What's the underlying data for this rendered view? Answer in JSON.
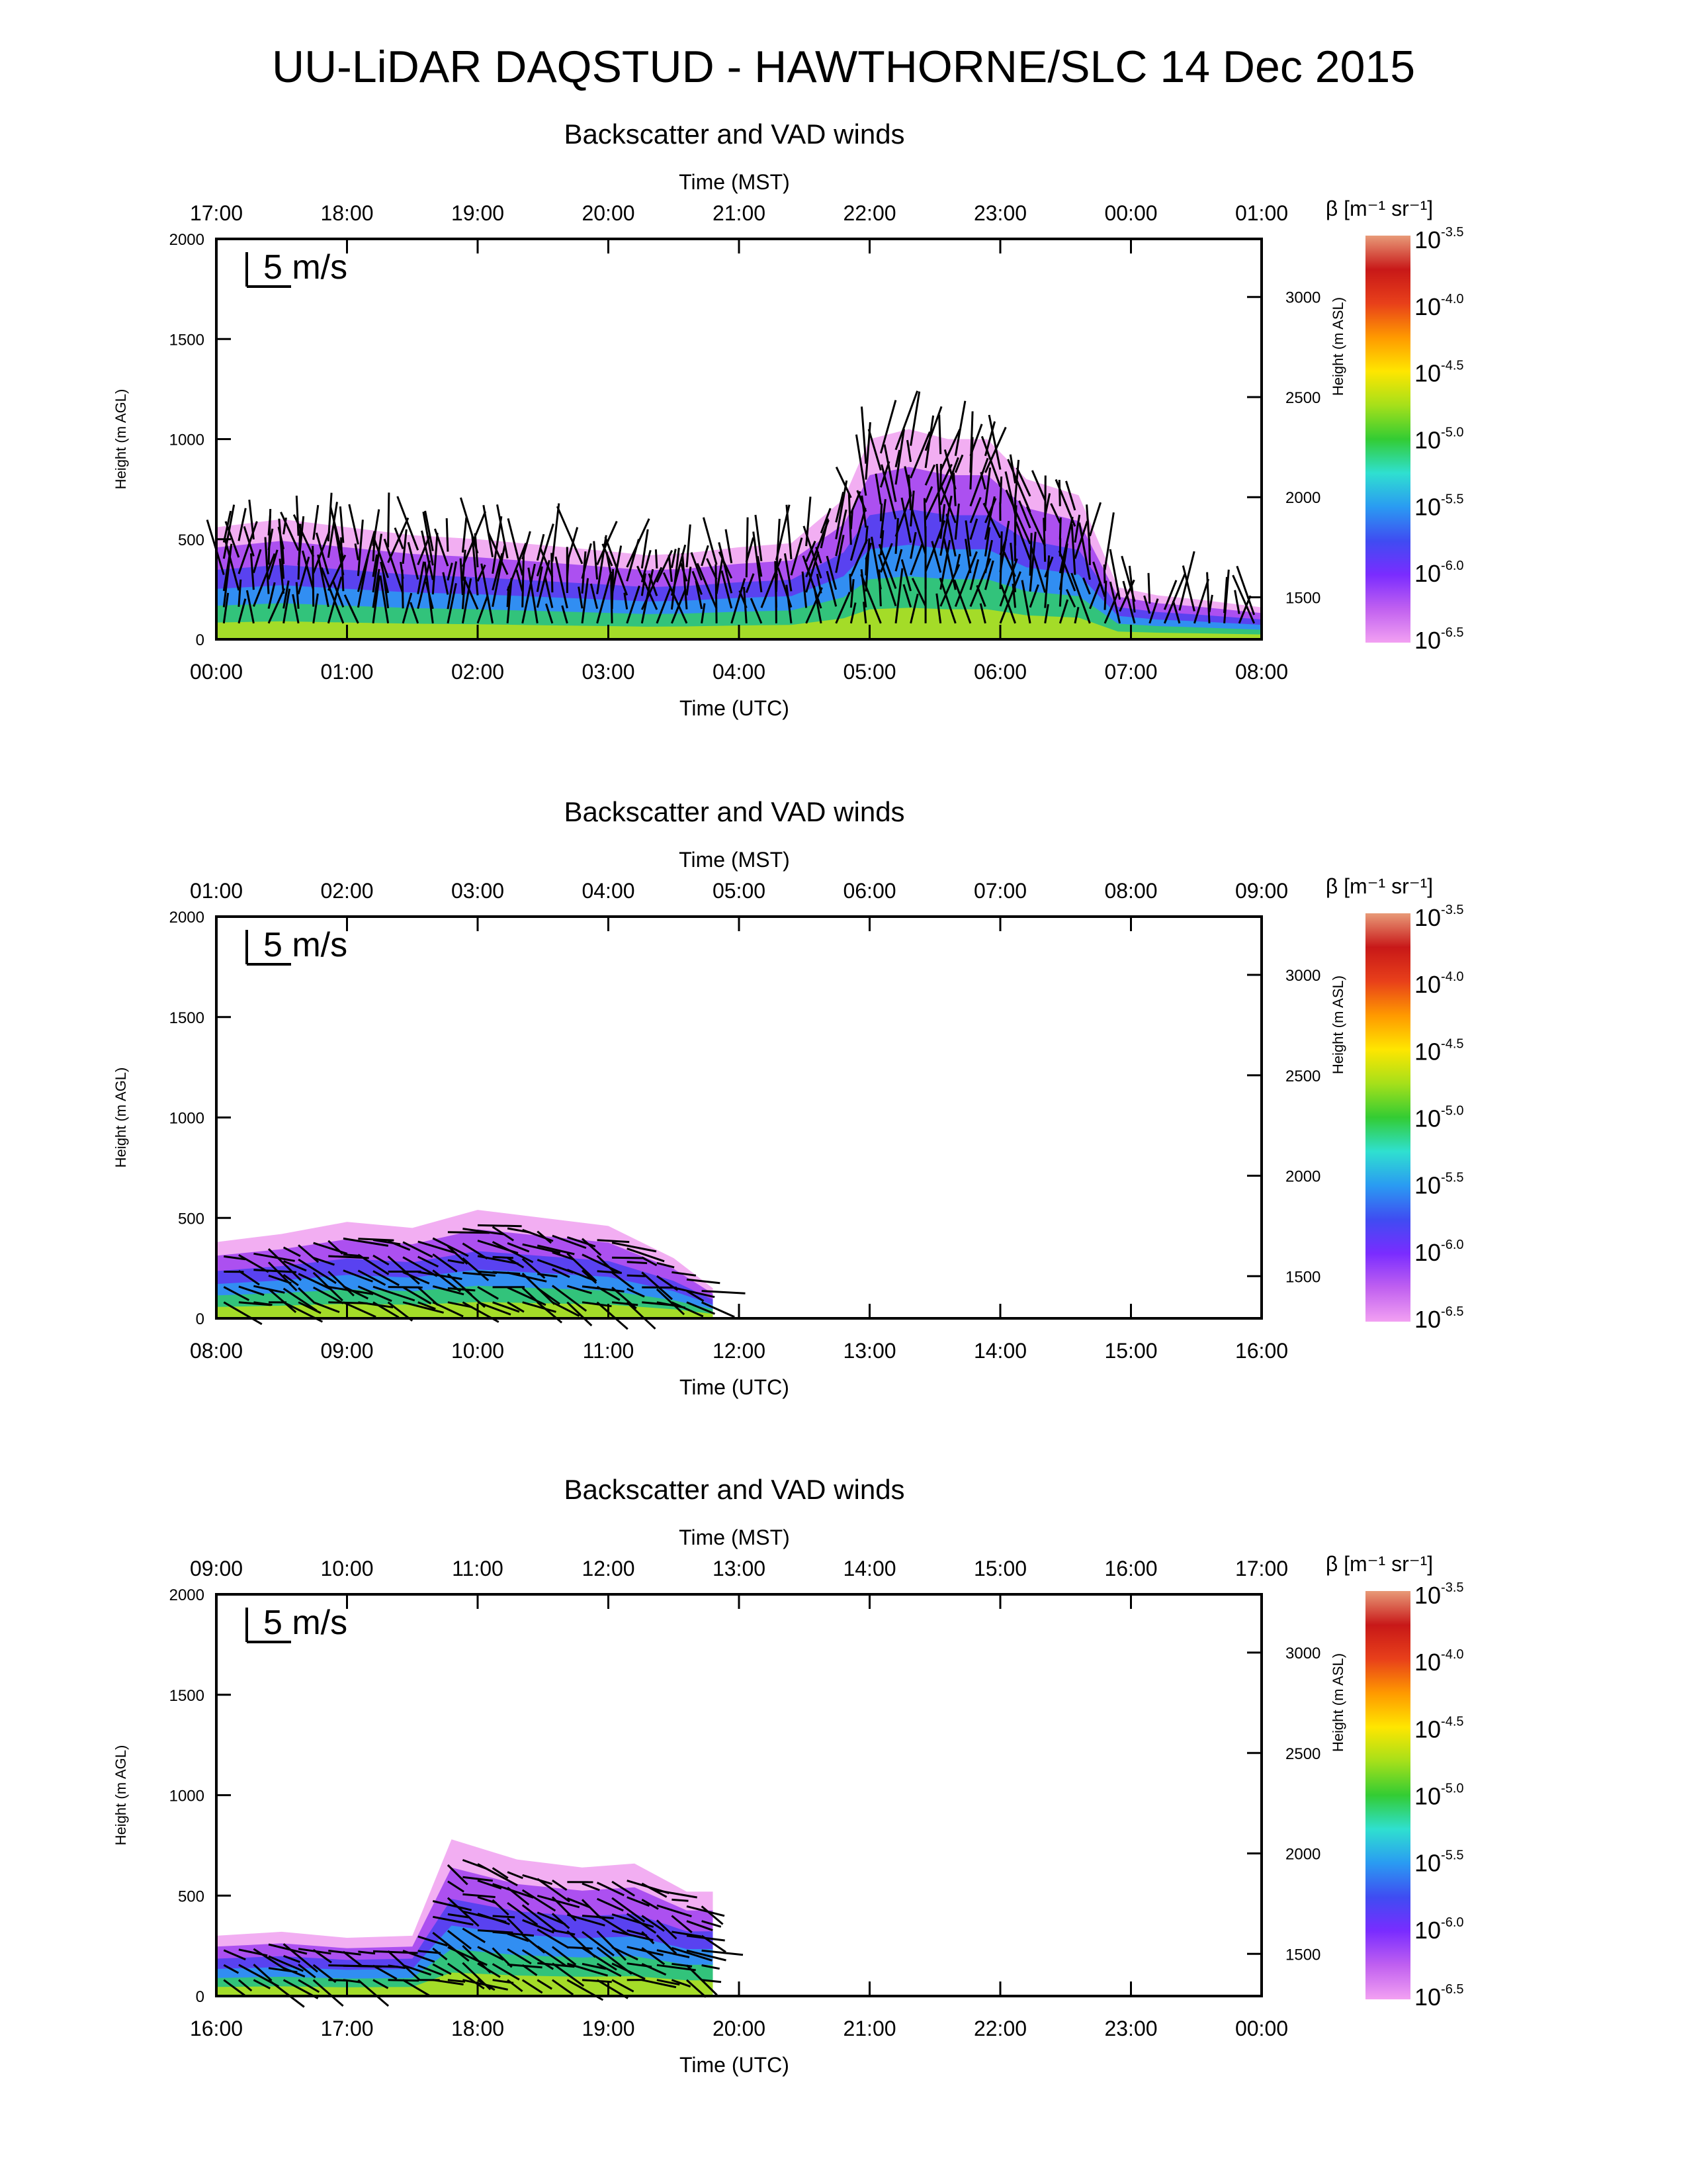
{
  "figure": {
    "title": "UU-LiDAR DAQSTUD - HAWTHORNE/SLC 14 Dec 2015"
  },
  "colors": {
    "colorbar": [
      "#f2a0f2",
      "#c060f0",
      "#7a2cff",
      "#3f4cf2",
      "#2a9bf2",
      "#2fe0d0",
      "#33cc33",
      "#a6e01a",
      "#ffe600",
      "#ff9900",
      "#e8401a",
      "#c81818",
      "#e89a78"
    ],
    "arrow": "#000000"
  },
  "chart_data": [
    {
      "type": "heatmap",
      "title": "Backscatter and VAD winds",
      "xlabel": "Time (UTC)",
      "xlabel_top": "Time (MST)",
      "ylabel": "Height (m AGL)",
      "ylabel_right": "Height (m ASL)",
      "x_ticks": [
        "00:00",
        "01:00",
        "02:00",
        "03:00",
        "04:00",
        "05:00",
        "06:00",
        "07:00",
        "08:00"
      ],
      "x_ticks_top": [
        "17:00",
        "18:00",
        "19:00",
        "20:00",
        "21:00",
        "22:00",
        "23:00",
        "00:00",
        "01:00"
      ],
      "xlim_hours": [
        0,
        8
      ],
      "ylim": [
        0,
        2000
      ],
      "y_ticks": [
        "0",
        "500",
        "1000",
        "1500",
        "2000"
      ],
      "y_ticks_right": [
        "1500",
        "2000",
        "2500",
        "3000"
      ],
      "wind_scale_label": "5 m/s",
      "colorbar_label": "β [m⁻¹ sr⁻¹]",
      "colorbar_ticks": [
        {
          "base": "10",
          "exp": "-3.5"
        },
        {
          "base": "10",
          "exp": "-4.0"
        },
        {
          "base": "10",
          "exp": "-4.5"
        },
        {
          "base": "10",
          "exp": "-5.0"
        },
        {
          "base": "10",
          "exp": "-5.5"
        },
        {
          "base": "10",
          "exp": "-6.0"
        },
        {
          "base": "10",
          "exp": "-6.5"
        }
      ],
      "aerosol_layer_top_m": [
        [
          0.0,
          560
        ],
        [
          0.5,
          600
        ],
        [
          1.0,
          560
        ],
        [
          1.5,
          520
        ],
        [
          2.0,
          500
        ],
        [
          2.5,
          470
        ],
        [
          3.0,
          440
        ],
        [
          3.3,
          420
        ],
        [
          3.6,
          430
        ],
        [
          4.0,
          460
        ],
        [
          4.4,
          480
        ],
        [
          4.8,
          700
        ],
        [
          5.0,
          1000
        ],
        [
          5.3,
          1050
        ],
        [
          5.6,
          1000
        ],
        [
          5.9,
          1000
        ],
        [
          6.2,
          800
        ],
        [
          6.6,
          720
        ],
        [
          6.9,
          260
        ],
        [
          7.2,
          220
        ],
        [
          7.5,
          200
        ],
        [
          8.0,
          160
        ]
      ],
      "notes_visible": []
    },
    {
      "type": "heatmap",
      "title": "Backscatter and VAD winds",
      "xlabel": "Time (UTC)",
      "xlabel_top": "Time (MST)",
      "ylabel": "Height (m AGL)",
      "ylabel_right": "Height (m ASL)",
      "x_ticks": [
        "08:00",
        "09:00",
        "10:00",
        "11:00",
        "12:00",
        "13:00",
        "14:00",
        "15:00",
        "16:00"
      ],
      "x_ticks_top": [
        "01:00",
        "02:00",
        "03:00",
        "04:00",
        "05:00",
        "06:00",
        "07:00",
        "08:00",
        "09:00"
      ],
      "xlim_hours": [
        8,
        16
      ],
      "ylim": [
        0,
        2000
      ],
      "y_ticks": [
        "0",
        "500",
        "1000",
        "1500",
        "2000"
      ],
      "y_ticks_right": [
        "1500",
        "2000",
        "2500",
        "3000"
      ],
      "wind_scale_label": "5 m/s",
      "colorbar_label": "β [m⁻¹ sr⁻¹]",
      "colorbar_ticks": [
        {
          "base": "10",
          "exp": "-3.5"
        },
        {
          "base": "10",
          "exp": "-4.0"
        },
        {
          "base": "10",
          "exp": "-4.5"
        },
        {
          "base": "10",
          "exp": "-5.0"
        },
        {
          "base": "10",
          "exp": "-5.5"
        },
        {
          "base": "10",
          "exp": "-6.0"
        },
        {
          "base": "10",
          "exp": "-6.5"
        }
      ],
      "aerosol_layer_top_m": [
        [
          8.0,
          380
        ],
        [
          8.5,
          420
        ],
        [
          9.0,
          480
        ],
        [
          9.5,
          450
        ],
        [
          10.0,
          540
        ],
        [
          10.5,
          500
        ],
        [
          11.0,
          460
        ],
        [
          11.5,
          300
        ],
        [
          11.8,
          150
        ]
      ]
    },
    {
      "type": "heatmap",
      "title": "Backscatter and VAD winds",
      "xlabel": "Time (UTC)",
      "xlabel_top": "Time (MST)",
      "ylabel": "Height (m AGL)",
      "ylabel_right": "Height (m ASL)",
      "x_ticks": [
        "16:00",
        "17:00",
        "18:00",
        "19:00",
        "20:00",
        "21:00",
        "22:00",
        "23:00",
        "00:00"
      ],
      "x_ticks_top": [
        "09:00",
        "10:00",
        "11:00",
        "12:00",
        "13:00",
        "14:00",
        "15:00",
        "16:00",
        "17:00"
      ],
      "xlim_hours": [
        16,
        24
      ],
      "ylim": [
        0,
        2000
      ],
      "y_ticks": [
        "0",
        "500",
        "1000",
        "1500",
        "2000"
      ],
      "y_ticks_right": [
        "1500",
        "2000",
        "2500",
        "3000"
      ],
      "wind_scale_label": "5 m/s",
      "colorbar_label": "β [m⁻¹ sr⁻¹]",
      "colorbar_ticks": [
        {
          "base": "10",
          "exp": "-3.5"
        },
        {
          "base": "10",
          "exp": "-4.0"
        },
        {
          "base": "10",
          "exp": "-4.5"
        },
        {
          "base": "10",
          "exp": "-5.0"
        },
        {
          "base": "10",
          "exp": "-5.5"
        },
        {
          "base": "10",
          "exp": "-6.0"
        },
        {
          "base": "10",
          "exp": "-6.5"
        }
      ],
      "aerosol_layer_top_m": [
        [
          16.0,
          300
        ],
        [
          16.5,
          320
        ],
        [
          17.0,
          290
        ],
        [
          17.5,
          300
        ],
        [
          17.8,
          780
        ],
        [
          18.3,
          680
        ],
        [
          18.8,
          640
        ],
        [
          19.2,
          660
        ],
        [
          19.6,
          520
        ],
        [
          19.8,
          520
        ]
      ]
    }
  ]
}
